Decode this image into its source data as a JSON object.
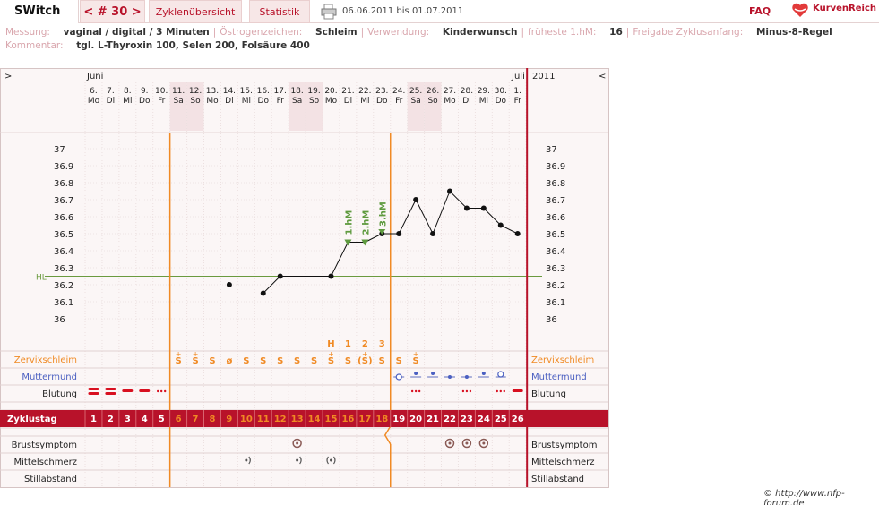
{
  "nav": {
    "brand": "SWitch",
    "cycle": "< # 30 >",
    "tab_overview": "Zyklenübersicht",
    "tab_stats": "Statistik",
    "date_range": "06.06.2011 bis 01.07.2011",
    "faq": "FAQ",
    "logo_text": "KurvenReich"
  },
  "info": {
    "measurement_label": "Messung:",
    "measurement_value": "vaginal / digital / 3 Minuten",
    "estrogen_label": "Östrogenzeichen:",
    "estrogen_value": "Schleim",
    "usage_label": "Verwendung:",
    "usage_value": "Kinderwunsch",
    "earliest_label": "früheste 1.hM:",
    "earliest_value": "16",
    "release_label": "Freigabe Zyklusanfang:",
    "release_value": "Minus-8-Regel",
    "comment_label": "Kommentar:",
    "comment_value": "tgl. L-Thyroxin 100, Selen 200, Folsäure 400"
  },
  "header": {
    "left_arrow": ">",
    "right_arrow": "<",
    "month_start": "Juni",
    "month_end": "Juli",
    "year": "2011"
  },
  "days": [
    {
      "d": "6.",
      "w": "Mo"
    },
    {
      "d": "7.",
      "w": "Di"
    },
    {
      "d": "8.",
      "w": "Mi"
    },
    {
      "d": "9.",
      "w": "Do"
    },
    {
      "d": "10.",
      "w": "Fr"
    },
    {
      "d": "11.",
      "w": "Sa"
    },
    {
      "d": "12.",
      "w": "So"
    },
    {
      "d": "13.",
      "w": "Mo"
    },
    {
      "d": "14.",
      "w": "Di"
    },
    {
      "d": "15.",
      "w": "Mi"
    },
    {
      "d": "16.",
      "w": "Do"
    },
    {
      "d": "17.",
      "w": "Fr"
    },
    {
      "d": "18.",
      "w": "Sa"
    },
    {
      "d": "19.",
      "w": "So"
    },
    {
      "d": "20.",
      "w": "Mo"
    },
    {
      "d": "21.",
      "w": "Di"
    },
    {
      "d": "22.",
      "w": "Mi"
    },
    {
      "d": "23.",
      "w": "Do"
    },
    {
      "d": "24.",
      "w": "Fr"
    },
    {
      "d": "25.",
      "w": "Sa"
    },
    {
      "d": "26.",
      "w": "So"
    },
    {
      "d": "27.",
      "w": "Mo"
    },
    {
      "d": "28.",
      "w": "Di"
    },
    {
      "d": "29.",
      "w": "Mi"
    },
    {
      "d": "30.",
      "w": "Do"
    },
    {
      "d": "1.",
      "w": "Fr"
    }
  ],
  "weekend_index": [
    5,
    6,
    12,
    13,
    19,
    20
  ],
  "chart_data": {
    "type": "line",
    "x": [
      1,
      2,
      3,
      4,
      5,
      6,
      7,
      8,
      9,
      10,
      11,
      12,
      13,
      14,
      15,
      16,
      17,
      18,
      19,
      20,
      21,
      22,
      23,
      24,
      25,
      26
    ],
    "y": [
      null,
      null,
      null,
      null,
      null,
      null,
      null,
      null,
      36.2,
      null,
      36.15,
      36.25,
      null,
      null,
      36.25,
      36.45,
      36.45,
      36.5,
      36.5,
      36.7,
      36.5,
      36.75,
      36.65,
      36.65,
      36.55,
      36.5
    ],
    "y_ticks": [
      "37",
      "36.9",
      "36.8",
      "36.7",
      "36.6",
      "36.5",
      "36.4",
      "36.3",
      "36.2",
      "36.1",
      "36"
    ],
    "ylim": [
      36,
      37
    ],
    "coverline": 36.25,
    "coverline_label": "HL",
    "high_labels": [
      {
        "day": 16,
        "text": "1.hM"
      },
      {
        "day": 17,
        "text": "2.hM"
      },
      {
        "day": 18,
        "text": "3.hM"
      }
    ],
    "grid": true
  },
  "peak_markers": [
    {
      "day": 15,
      "text": "H"
    },
    {
      "day": 16,
      "text": "1"
    },
    {
      "day": 17,
      "text": "2"
    },
    {
      "day": 18,
      "text": "3"
    }
  ],
  "rows": {
    "cervix_label": "Zervixschleim",
    "cervix_values": [
      "",
      "",
      "",
      "",
      "",
      "S+",
      "S+",
      "S",
      "ø",
      "S",
      "S",
      "S",
      "S",
      "S",
      "S+",
      "S",
      "(S+)",
      "S",
      "S",
      "S+",
      "",
      "",
      "",
      "",
      "",
      ""
    ],
    "mouth_label": "Muttermund",
    "bleeding_label": "Blutung",
    "cycle_label": "Zyklustag",
    "cycle_days": [
      "1",
      "2",
      "3",
      "4",
      "5",
      "6",
      "7",
      "8",
      "9",
      "10",
      "11",
      "12",
      "13",
      "14",
      "15",
      "16",
      "17",
      "18",
      "19",
      "20",
      "21",
      "22",
      "23",
      "24",
      "25",
      "26"
    ],
    "breast_label": "Brustsymptom",
    "mittel_label": "Mittelschmerz",
    "still_label": "Stillabstand"
  },
  "mouth_symbols": [
    {
      "day": 19,
      "t": "open"
    },
    {
      "day": 20,
      "t": "up"
    },
    {
      "day": 21,
      "t": "up"
    },
    {
      "day": 22,
      "t": "mid"
    },
    {
      "day": 23,
      "t": "mid"
    },
    {
      "day": 24,
      "t": "up"
    },
    {
      "day": 25,
      "t": "ring"
    }
  ],
  "bleeding": [
    {
      "day": 1,
      "t": "heavy"
    },
    {
      "day": 2,
      "t": "heavy"
    },
    {
      "day": 3,
      "t": "dash"
    },
    {
      "day": 4,
      "t": "dash"
    },
    {
      "day": 5,
      "t": "dots"
    },
    {
      "day": 20,
      "t": "dots"
    },
    {
      "day": 23,
      "t": "dots"
    },
    {
      "day": 25,
      "t": "dots"
    },
    {
      "day": 26,
      "t": "dash"
    }
  ],
  "breast_days": [
    13,
    22,
    23,
    24
  ],
  "mittel_days": [
    {
      "day": 10,
      "side": "right"
    },
    {
      "day": 13,
      "side": "right"
    },
    {
      "day": 15,
      "side": "both"
    }
  ],
  "colors": {
    "accent": "#b8122a",
    "orange": "#f08a24",
    "cycle_bar": "#b8122a",
    "coverline": "#6a9a3e",
    "hm_green": "#5e9a3e",
    "weekend_bg": "#f3e2e4"
  },
  "copyright": "© http://www.nfp-forum.de"
}
